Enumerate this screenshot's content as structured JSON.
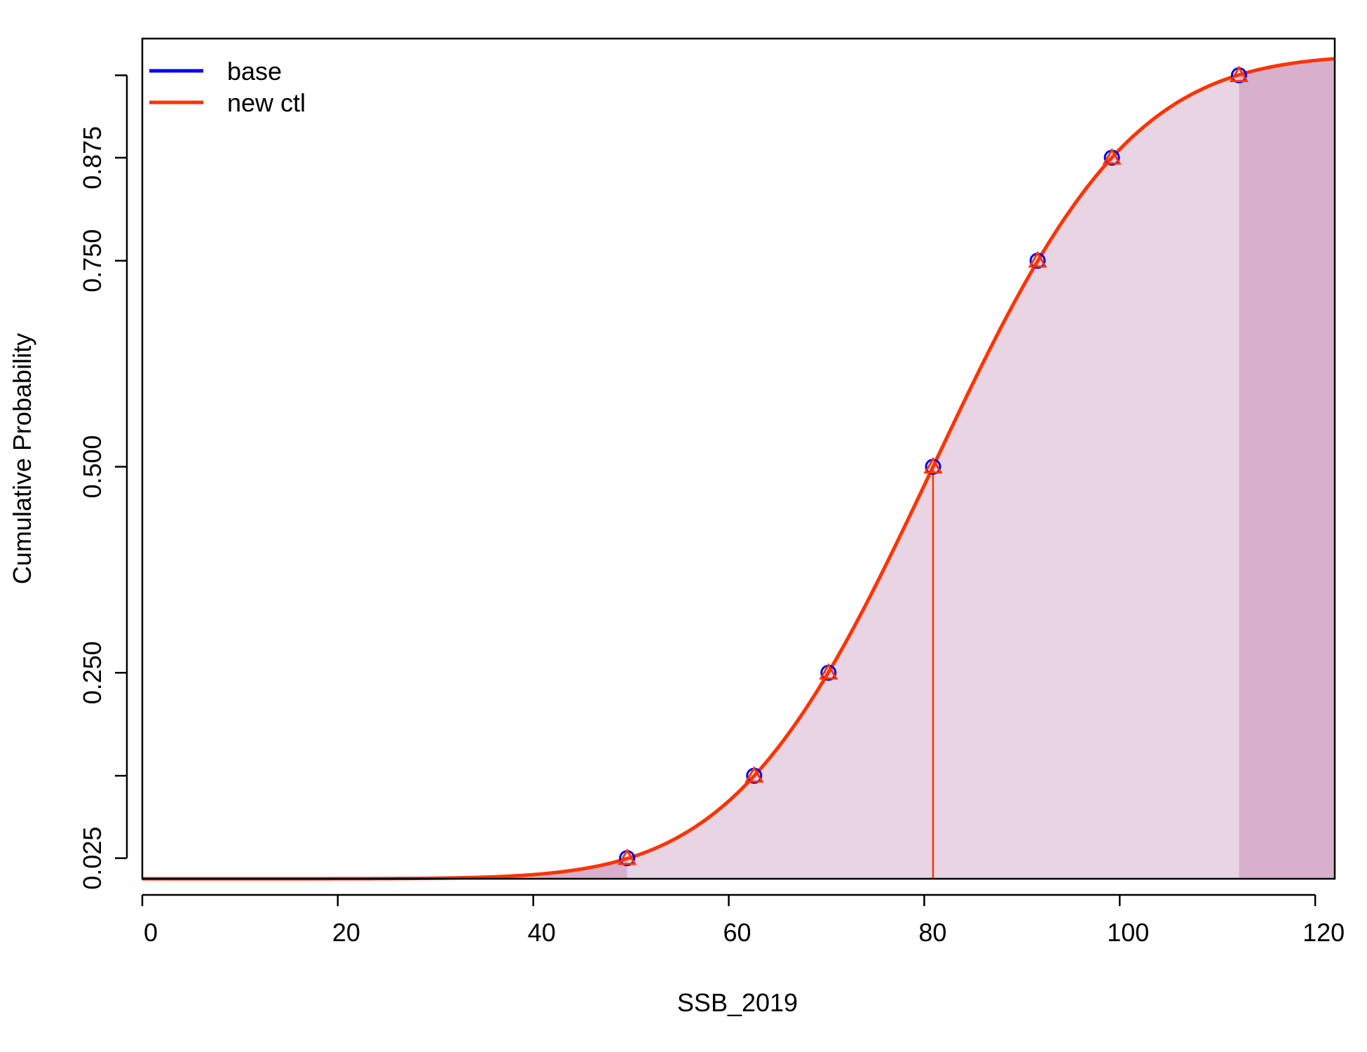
{
  "chart_data": {
    "type": "line",
    "title": "",
    "xlabel": "SSB_2019",
    "ylabel": "Cumulative Probability",
    "xlim": [
      0,
      122
    ],
    "ylim": [
      0,
      1
    ],
    "x_ticks": [
      "0",
      "20",
      "40",
      "60",
      "80",
      "100",
      "120"
    ],
    "y_ticks": [
      "0.025",
      "0.250",
      "0.500",
      "0.750",
      "0.875"
    ],
    "y_tick_marks": [
      0.025,
      0.125,
      0.25,
      0.5,
      0.75,
      0.875,
      0.975
    ],
    "grid": false,
    "legend_position": "top-left",
    "distribution": {
      "kind": "normal-cdf",
      "mean": 80.9,
      "sd": 15.9
    },
    "series": [
      {
        "name": "base",
        "color": "#0000ff",
        "marker": "circle",
        "quantile_points": [
          {
            "x": 49.6,
            "y": 0.025
          },
          {
            "x": 62.6,
            "y": 0.125
          },
          {
            "x": 70.2,
            "y": 0.25
          },
          {
            "x": 80.9,
            "y": 0.5
          },
          {
            "x": 91.6,
            "y": 0.75
          },
          {
            "x": 99.2,
            "y": 0.875
          },
          {
            "x": 112.2,
            "y": 0.975
          }
        ]
      },
      {
        "name": "new ctl",
        "color": "#ff3300",
        "marker": "triangle",
        "quantile_points": [
          {
            "x": 49.6,
            "y": 0.025
          },
          {
            "x": 62.6,
            "y": 0.125
          },
          {
            "x": 70.2,
            "y": 0.25
          },
          {
            "x": 80.9,
            "y": 0.5
          },
          {
            "x": 91.6,
            "y": 0.75
          },
          {
            "x": 99.2,
            "y": 0.875
          },
          {
            "x": 112.2,
            "y": 0.975
          }
        ]
      }
    ],
    "median_line": {
      "x": 80.9,
      "color": "#ff3300"
    },
    "shading": {
      "tail_color": "#d8b0cc",
      "central_color": "#e8d4e3",
      "lower_tail": [
        0,
        49.6
      ],
      "central": [
        49.6,
        112.2
      ],
      "upper_tail": [
        112.2,
        122
      ]
    }
  }
}
